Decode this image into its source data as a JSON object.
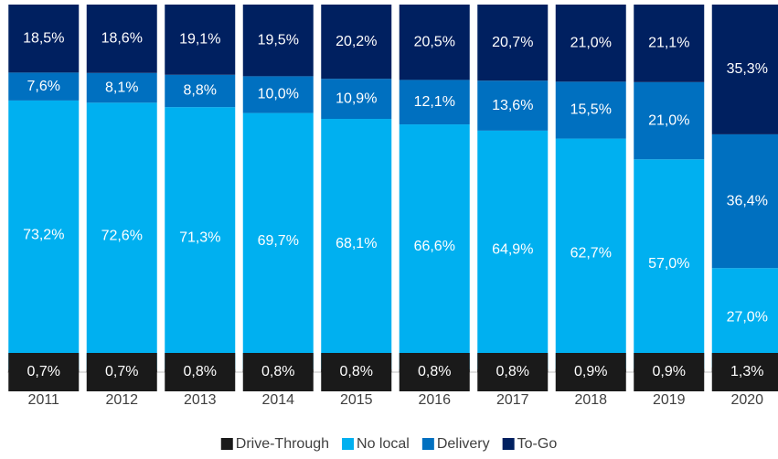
{
  "chart_data": {
    "type": "bar",
    "stacked": true,
    "legend": "bottom",
    "categories": [
      "2011",
      "2012",
      "2013",
      "2014",
      "2015",
      "2016",
      "2017",
      "2018",
      "2019",
      "2020"
    ],
    "series": [
      {
        "name": "Drive-Through",
        "color": "#1a1a1a",
        "values": [
          0.7,
          0.7,
          0.8,
          0.8,
          0.8,
          0.8,
          0.8,
          0.9,
          0.9,
          1.3
        ],
        "value_labels": [
          "0,7%",
          "0,7%",
          "0,8%",
          "0,8%",
          "0,8%",
          "0,8%",
          "0,8%",
          "0,9%",
          "0,9%",
          "1,3%"
        ]
      },
      {
        "name": "No local",
        "color": "#00b0f0",
        "values": [
          73.2,
          72.6,
          71.3,
          69.7,
          68.1,
          66.6,
          64.9,
          62.7,
          57.0,
          27.0
        ],
        "value_labels": [
          "73,2%",
          "72,6%",
          "71,3%",
          "69,7%",
          "68,1%",
          "66,6%",
          "64,9%",
          "62,7%",
          "57,0%",
          "27,0%"
        ]
      },
      {
        "name": "Delivery",
        "color": "#0070c0",
        "values": [
          7.6,
          8.1,
          8.8,
          10.0,
          10.9,
          12.1,
          13.6,
          15.5,
          21.0,
          36.4
        ],
        "value_labels": [
          "7,6%",
          "8,1%",
          "8,8%",
          "10,0%",
          "10,9%",
          "12,1%",
          "13,6%",
          "15,5%",
          "21,0%",
          "36,4%"
        ]
      },
      {
        "name": "To-Go",
        "color": "#002060",
        "values": [
          18.5,
          18.6,
          19.1,
          19.5,
          20.2,
          20.5,
          20.7,
          21.0,
          21.1,
          35.3
        ],
        "value_labels": [
          "18,5%",
          "18,6%",
          "19,1%",
          "19,5%",
          "20,2%",
          "20,5%",
          "20,7%",
          "21,0%",
          "21,1%",
          "35,3%"
        ]
      }
    ]
  }
}
